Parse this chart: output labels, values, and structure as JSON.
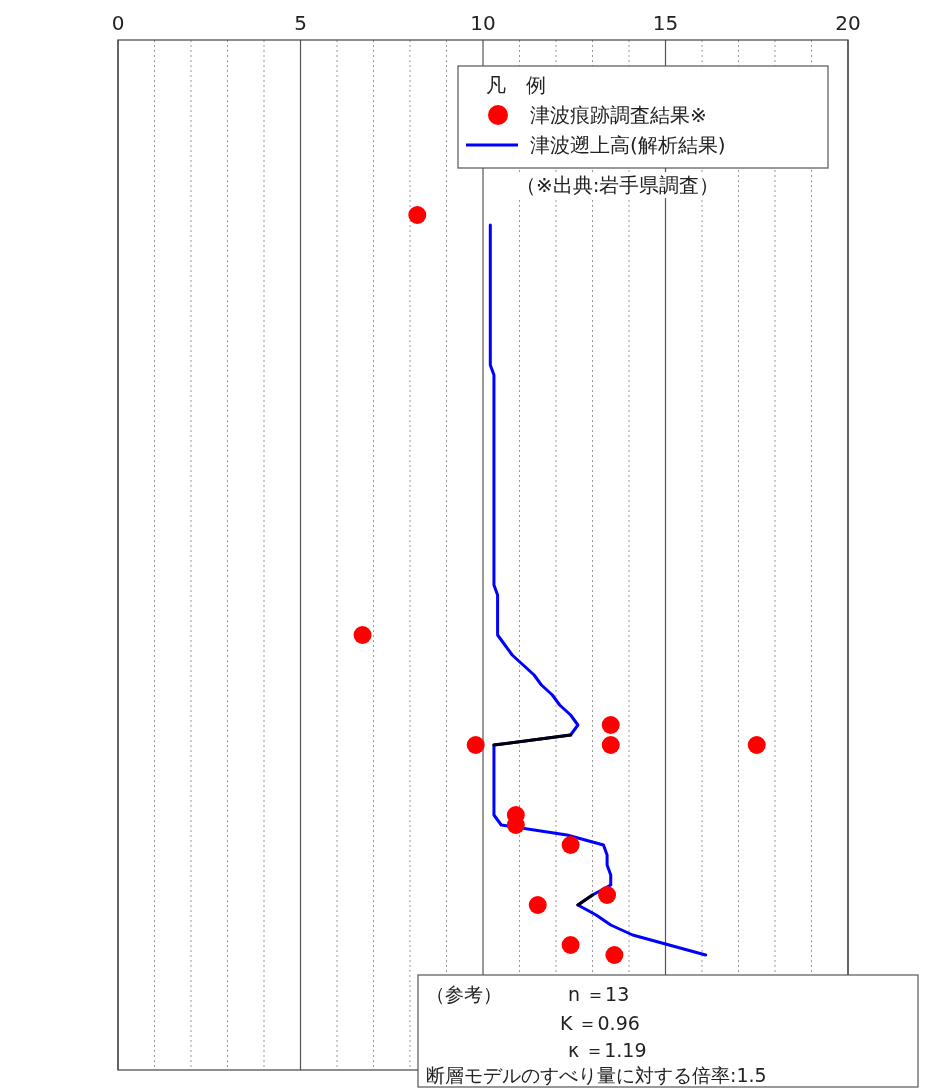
{
  "chart_data": {
    "type": "scatter",
    "orientation": "horizontal",
    "categories": [
      null,
      null,
      null,
      null,
      null,
      null,
      null,
      null,
      null,
      null,
      null,
      null,
      null,
      null,
      null,
      null,
      null,
      null,
      null,
      null,
      null,
      null,
      null,
      null,
      null,
      null,
      null,
      null,
      null,
      null,
      null,
      null,
      null,
      null,
      null,
      null,
      null,
      null,
      null,
      null,
      null,
      null,
      null,
      null,
      null,
      null,
      null,
      null,
      null,
      null,
      null,
      null,
      null,
      null,
      null,
      null,
      null,
      null,
      null,
      null,
      null,
      null,
      null,
      null,
      null,
      null,
      null,
      null,
      null,
      null,
      null,
      null,
      null,
      null,
      null,
      null,
      null,
      null,
      null,
      null,
      null,
      null,
      null,
      null,
      null,
      null,
      null,
      null,
      null,
      null,
      null,
      null,
      null,
      null,
      null,
      null,
      null,
      null,
      null,
      null,
      null,
      null,
      null
    ],
    "series": [
      {
        "name": "津波痕跡調査結果※",
        "marker": "circle",
        "color": "#ff0000",
        "values": [
          null,
          null,
          null,
          null,
          null,
          null,
          null,
          null,
          null,
          null,
          null,
          null,
          null,
          null,
          null,
          null,
          null,
          8.2,
          null,
          null,
          null,
          null,
          null,
          null,
          null,
          null,
          null,
          null,
          null,
          null,
          null,
          null,
          null,
          null,
          null,
          null,
          null,
          null,
          null,
          null,
          null,
          null,
          null,
          null,
          null,
          null,
          null,
          null,
          null,
          null,
          null,
          null,
          null,
          null,
          null,
          null,
          null,
          null,
          null,
          6.7,
          null,
          null,
          null,
          null,
          null,
          null,
          null,
          null,
          13.5,
          null,
          9.8,
          null,
          null,
          null,
          null,
          null,
          null,
          10.9,
          10.9,
          null,
          12.4,
          null,
          null,
          null,
          null,
          13.4,
          11.5,
          null,
          null,
          null,
          12.4,
          13.6,
          null,
          null,
          null,
          null,
          null,
          null,
          null,
          null,
          null,
          null,
          null
        ]
      },
      {
        "marker": "circle",
        "color": "#ff0000",
        "values": [
          null,
          null,
          null,
          null,
          null,
          null,
          null,
          null,
          null,
          null,
          null,
          null,
          null,
          null,
          null,
          null,
          null,
          null,
          null,
          null,
          null,
          null,
          null,
          null,
          null,
          null,
          null,
          null,
          null,
          null,
          null,
          null,
          null,
          null,
          null,
          null,
          null,
          null,
          null,
          null,
          null,
          null,
          null,
          null,
          null,
          null,
          null,
          null,
          null,
          null,
          null,
          null,
          null,
          null,
          null,
          null,
          null,
          null,
          null,
          null,
          null,
          null,
          null,
          null,
          null,
          null,
          null,
          null,
          null,
          null,
          13.5,
          null,
          null,
          null,
          null,
          null,
          null,
          null,
          null,
          null,
          null,
          null,
          null,
          null,
          null,
          null,
          null,
          null,
          null,
          null,
          null,
          null,
          null,
          null,
          null,
          null,
          null,
          null,
          null,
          null,
          null,
          null,
          null
        ]
      },
      {
        "marker": "circle",
        "color": "#ff0000",
        "values": [
          null,
          null,
          null,
          null,
          null,
          null,
          null,
          null,
          null,
          null,
          null,
          null,
          null,
          null,
          null,
          null,
          null,
          null,
          null,
          null,
          null,
          null,
          null,
          null,
          null,
          null,
          null,
          null,
          null,
          null,
          null,
          null,
          null,
          null,
          null,
          null,
          null,
          null,
          null,
          null,
          null,
          null,
          null,
          null,
          null,
          null,
          null,
          null,
          null,
          null,
          null,
          null,
          null,
          null,
          null,
          null,
          null,
          null,
          null,
          null,
          null,
          null,
          null,
          null,
          null,
          null,
          null,
          null,
          null,
          null,
          17.5,
          null,
          null,
          null,
          null,
          null,
          null,
          null,
          null,
          null,
          null,
          null,
          null,
          null,
          null,
          null,
          null,
          null,
          null,
          null,
          null,
          null,
          null,
          null,
          null,
          null,
          null,
          null,
          null,
          null,
          null,
          null,
          null
        ]
      },
      {
        "name": "津波遡上高(解析結果)",
        "type": "line",
        "color": "#0000ff",
        "values": [
          null,
          null,
          null,
          null,
          null,
          null,
          null,
          null,
          null,
          null,
          null,
          null,
          null,
          null,
          null,
          null,
          null,
          null,
          10.2,
          10.2,
          10.2,
          10.2,
          10.2,
          10.2,
          10.2,
          10.2,
          10.2,
          10.2,
          10.2,
          10.2,
          10.2,
          10.2,
          10.2,
          10.3,
          10.3,
          10.3,
          10.3,
          10.3,
          10.3,
          10.3,
          10.3,
          10.3,
          10.3,
          10.3,
          10.3,
          10.3,
          10.3,
          10.3,
          10.3,
          10.3,
          10.3,
          10.3,
          10.3,
          10.3,
          10.3,
          10.4,
          10.4,
          10.4,
          10.4,
          10.4,
          10.6,
          10.8,
          11.1,
          11.4,
          11.6,
          11.9,
          12.1,
          12.4,
          12.6,
          12.4,
          10.3,
          10.3,
          10.3,
          10.3,
          10.3,
          10.3,
          10.3,
          10.3,
          10.5,
          12.3,
          13.3,
          13.4,
          13.4,
          13.5,
          13.5,
          13.0,
          12.6,
          13.1,
          13.5,
          14.1,
          15.1,
          16.1,
          null,
          null,
          null,
          null,
          null,
          null,
          null,
          null,
          null,
          null,
          null
        ]
      },
      {
        "type": "line",
        "color": "#000000",
        "values": [
          null,
          null,
          null,
          null,
          null,
          null,
          null,
          null,
          null,
          null,
          null,
          null,
          null,
          null,
          null,
          null,
          null,
          null,
          null,
          null,
          null,
          null,
          null,
          null,
          null,
          null,
          null,
          null,
          null,
          null,
          null,
          null,
          null,
          null,
          null,
          null,
          null,
          null,
          null,
          null,
          null,
          null,
          null,
          null,
          null,
          null,
          null,
          null,
          null,
          null,
          null,
          null,
          null,
          null,
          null,
          null,
          null,
          null,
          null,
          null,
          null,
          null,
          null,
          null,
          null,
          null,
          null,
          null,
          null,
          12.4,
          10.3,
          null,
          null,
          null,
          null,
          null,
          null,
          null,
          null,
          null,
          null,
          null,
          null,
          null,
          null,
          13.0,
          12.6,
          null,
          null,
          null,
          null,
          null,
          null,
          null,
          null,
          null,
          null,
          null,
          null,
          null,
          null,
          null,
          null
        ]
      }
    ],
    "xlim": [
      0,
      20
    ],
    "xticks": [
      0,
      {
        "value": 1,
        "label": null
      },
      {
        "value": 2,
        "label": null
      },
      {
        "value": 3,
        "label": null
      },
      {
        "value": 4,
        "label": null
      },
      5,
      {
        "value": 6,
        "label": null
      },
      {
        "value": 7,
        "label": null
      },
      {
        "value": 8,
        "label": null
      },
      {
        "value": 9,
        "label": null
      },
      10,
      {
        "value": 11,
        "label": null
      },
      {
        "value": 12,
        "label": null
      },
      {
        "value": 13,
        "label": null
      },
      {
        "value": 14,
        "label": null
      },
      15,
      {
        "value": 16,
        "label": null
      },
      {
        "value": 17,
        "label": null
      },
      {
        "value": 18,
        "label": null
      },
      {
        "value": 19,
        "label": null
      },
      20
    ],
    "grid": "x",
    "legend": "top right",
    "legend_title": "凡　例",
    "line_style": "solid",
    "annotations": [
      "（※出典:岩手県調査）",
      "（参考）",
      "n ＝13",
      "K ＝0.96",
      "κ ＝1.19",
      "断層モデルのすべり量に対する倍率:1.5"
    ]
  }
}
